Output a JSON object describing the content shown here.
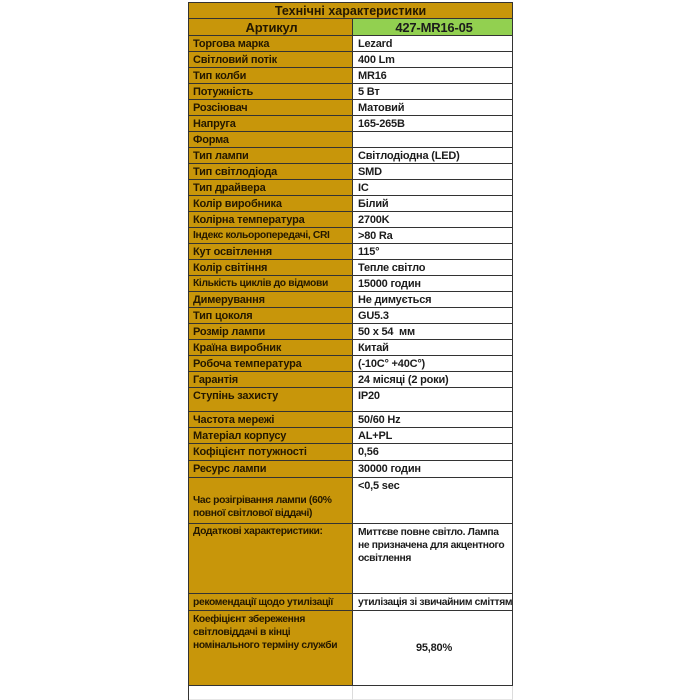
{
  "colors": {
    "gold": "#C8960A",
    "green": "#92D050",
    "border": "#333333"
  },
  "table": {
    "title": "Технічні характеристики",
    "artikul": {
      "label": "Артикул",
      "value": "427-MR16-05"
    },
    "rows": [
      {
        "label": "Торгова марка",
        "value": "Lezard"
      },
      {
        "label": "Світловий потік",
        "value": "400 Lm"
      },
      {
        "label": "Тип колби",
        "value": "MR16"
      },
      {
        "label": "Потужність",
        "value": "5 Вт"
      },
      {
        "label": "Розсіювач",
        "value": "Матовий"
      },
      {
        "label": "Напруга",
        "value": "165-265В"
      },
      {
        "label": "Форма",
        "value": ""
      },
      {
        "label": "Тип лампи",
        "value": "Світлодіодна (LED)"
      },
      {
        "label": "Тип світлодіода",
        "value": "SMD"
      },
      {
        "label": "Тип драйвера",
        "value": "IC"
      },
      {
        "label": "Колір виробника",
        "value": "Білий"
      },
      {
        "label": "Колірна температура",
        "value": "2700K"
      },
      {
        "label": "Індекс кольоропередачі, CRI",
        "value": ">80 Ra",
        "lcls": "small"
      },
      {
        "label": "Кут освітлення",
        "value": "115°"
      },
      {
        "label": "Колір світіння",
        "value": "Тепле світло"
      },
      {
        "label": "Кількість циклів до відмови",
        "value": "15000 годин",
        "lcls": "small"
      },
      {
        "label": "Димерування",
        "value": "Не димується"
      },
      {
        "label": "Тип цоколя",
        "value": "GU5.3"
      },
      {
        "label": "Розмір лампи",
        "value": "50 x 54  мм"
      },
      {
        "label": "Країна виробник",
        "value": "Китай"
      },
      {
        "label": "Робоча температура",
        "value": "(-10C° +40C°)"
      },
      {
        "label": "Гарантія",
        "value": "24 місяці (2 роки)"
      },
      {
        "label": "Ступінь захисту",
        "value": "IP20",
        "cls": "h24",
        "lcls": "v-top",
        "vcls": "v-top"
      },
      {
        "label": "Частота мережі",
        "value": "50/60 Hz"
      },
      {
        "label": "Матеріал корпусу",
        "value": "AL+PL"
      },
      {
        "label": "Кофіцієнт потужності",
        "value": "0,56",
        "cls": "h17"
      },
      {
        "label": "Ресурс лампи",
        "value": "30000 годин",
        "cls": "h17"
      },
      {
        "label": "Час розігрівання лампи (60% повної світлової віддачі)",
        "value": "<0,5 sec",
        "cls": "h46",
        "lcls": "small wrap v-bottom",
        "vcls": "v-top"
      },
      {
        "label": "Додаткові характеристики:",
        "value": "Миттєве повне світло. Лампа не призначена для акцентного освітлення",
        "cls": "h70",
        "lcls": "small v-top",
        "vcls": "small wrap v-top"
      },
      {
        "label": "рекомендації щодо утилізації",
        "value": "утилізація зі звичайним сміттям",
        "cls": "h17",
        "lcls": "small",
        "vcls": "small"
      },
      {
        "label": "Коефіцієнт збереження світловіддачі в кінці номінального терміну служби",
        "value": "95,80%",
        "cls": "h75",
        "lcls": "small wrap v-top",
        "vcls": "center"
      }
    ]
  }
}
